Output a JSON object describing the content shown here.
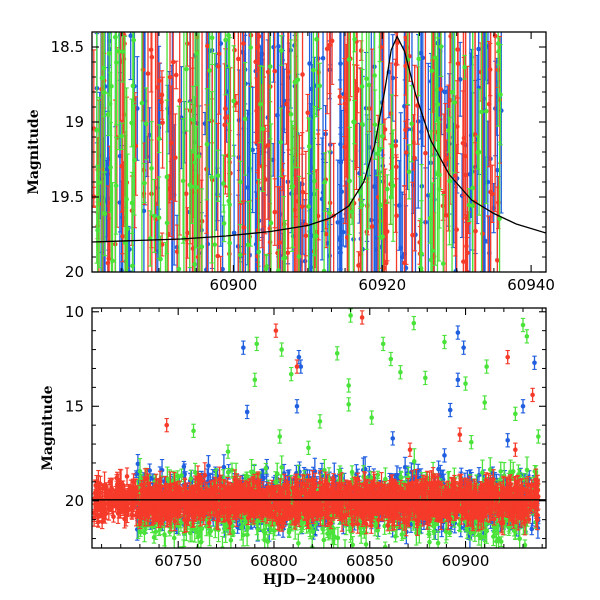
{
  "chart_data": [
    {
      "type": "scatter",
      "panel": "top",
      "title": "",
      "xlabel": "",
      "ylabel": "Magnitude",
      "xlim": [
        60881,
        60942
      ],
      "ylim": [
        20,
        18.4
      ],
      "y_inverted": true,
      "xticks": [
        60900,
        60920,
        60940
      ],
      "yticks": [
        18.5,
        19,
        19.5,
        20
      ],
      "ytick_labels": [
        "18.5",
        "19",
        "19.5",
        "20"
      ],
      "error_bars": true,
      "colors": {
        "blue": "#1f5fe0",
        "red": "#f53a2a",
        "green": "#4ae33a",
        "model": "#000000"
      },
      "model_curve": {
        "color": "#000000",
        "x": [
          60881,
          60887,
          60893,
          60899,
          60905,
          60910,
          60913,
          60915.5,
          60917.5,
          60919,
          60920.3,
          60921.2,
          60922.0,
          60923.0,
          60924.5,
          60926.5,
          60929,
          60932,
          60935,
          60938,
          60942
        ],
        "y": [
          19.8,
          19.79,
          19.78,
          19.76,
          19.73,
          19.69,
          19.64,
          19.56,
          19.4,
          19.15,
          18.8,
          18.52,
          18.43,
          18.53,
          18.82,
          19.12,
          19.35,
          19.52,
          19.61,
          19.68,
          19.74
        ]
      },
      "series": [
        {
          "color": "blue",
          "x_range": [
            60881,
            60936
          ],
          "npoints": 240,
          "seed": 11,
          "ymin": 18.42,
          "ymax": 20.02
        },
        {
          "color": "red",
          "x_range": [
            60881,
            60936
          ],
          "npoints": 240,
          "seed": 23,
          "ymin": 18.42,
          "ymax": 20.02
        },
        {
          "color": "green",
          "x_range": [
            60881,
            60937
          ],
          "npoints": 160,
          "seed": 37,
          "ymin": 18.42,
          "ymax": 20.02
        }
      ]
    },
    {
      "type": "scatter",
      "panel": "bottom",
      "title": "",
      "xlabel": "HJD−2400000",
      "ylabel": "Magnitude",
      "xlim": [
        60705,
        60942
      ],
      "ylim": [
        22.5,
        9.8
      ],
      "y_inverted": true,
      "xticks": [
        60750,
        60800,
        60850,
        60900
      ],
      "yticks": [
        10,
        15,
        20
      ],
      "ytick_labels": [
        "10",
        "15",
        "20"
      ],
      "error_bars": true,
      "colors": {
        "blue": "#1f5fe0",
        "red": "#f53a2a",
        "green": "#4ae33a",
        "model": "#000000"
      },
      "model_baseline": {
        "color": "#000000",
        "x": [
          60705,
          60942
        ],
        "y": [
          19.95,
          19.95
        ]
      },
      "dense_band": [
        {
          "color": "blue",
          "x_range": [
            60728,
            60938
          ],
          "npoints": 900,
          "center": 20.0,
          "spread": 2.2,
          "seed": 101
        },
        {
          "color": "green",
          "x_range": [
            60728,
            60938
          ],
          "npoints": 900,
          "center": 20.3,
          "spread": 2.6,
          "seed": 103
        },
        {
          "color": "red",
          "x_range": [
            60706,
            60938
          ],
          "npoints": 1600,
          "center": 20.0,
          "spread": 1.5,
          "seed": 107
        }
      ],
      "outliers": [
        {
          "color": "green",
          "x": 60840,
          "y": 10.2
        },
        {
          "color": "red",
          "x": 60846,
          "y": 10.3
        },
        {
          "color": "red",
          "x": 60801,
          "y": 11.0
        },
        {
          "color": "green",
          "x": 60873,
          "y": 10.6
        },
        {
          "color": "green",
          "x": 60930,
          "y": 10.7
        },
        {
          "color": "green",
          "x": 60932,
          "y": 11.3
        },
        {
          "color": "blue",
          "x": 60896,
          "y": 11.1
        },
        {
          "color": "blue",
          "x": 60899,
          "y": 11.9
        },
        {
          "color": "green",
          "x": 60791,
          "y": 11.7
        },
        {
          "color": "green",
          "x": 60804,
          "y": 12.0
        },
        {
          "color": "blue",
          "x": 60784,
          "y": 11.9
        },
        {
          "color": "green",
          "x": 60833,
          "y": 12.2
        },
        {
          "color": "blue",
          "x": 60813,
          "y": 12.4
        },
        {
          "color": "blue",
          "x": 60814,
          "y": 12.9
        },
        {
          "color": "red",
          "x": 60812,
          "y": 12.9
        },
        {
          "color": "green",
          "x": 60809,
          "y": 13.3
        },
        {
          "color": "green",
          "x": 60857,
          "y": 11.7
        },
        {
          "color": "green",
          "x": 60861,
          "y": 12.5
        },
        {
          "color": "green",
          "x": 60866,
          "y": 13.2
        },
        {
          "color": "green",
          "x": 60879,
          "y": 13.5
        },
        {
          "color": "green",
          "x": 60889,
          "y": 11.6
        },
        {
          "color": "green",
          "x": 60911,
          "y": 12.9
        },
        {
          "color": "red",
          "x": 60922,
          "y": 12.4
        },
        {
          "color": "blue",
          "x": 60936,
          "y": 12.7
        },
        {
          "color": "green",
          "x": 60790,
          "y": 13.6
        },
        {
          "color": "green",
          "x": 60839,
          "y": 13.9
        },
        {
          "color": "blue",
          "x": 60896,
          "y": 13.6
        },
        {
          "color": "green",
          "x": 60900,
          "y": 13.8
        },
        {
          "color": "red",
          "x": 60935,
          "y": 14.4
        },
        {
          "color": "blue",
          "x": 60786,
          "y": 15.3
        },
        {
          "color": "blue",
          "x": 60812,
          "y": 15.0
        },
        {
          "color": "green",
          "x": 60824,
          "y": 15.8
        },
        {
          "color": "green",
          "x": 60839,
          "y": 14.9
        },
        {
          "color": "green",
          "x": 60851,
          "y": 15.6
        },
        {
          "color": "blue",
          "x": 60892,
          "y": 15.2
        },
        {
          "color": "green",
          "x": 60910,
          "y": 14.8
        },
        {
          "color": "green",
          "x": 60926,
          "y": 15.4
        },
        {
          "color": "blue",
          "x": 60930,
          "y": 15.0
        },
        {
          "color": "red",
          "x": 60744,
          "y": 16.0
        },
        {
          "color": "green",
          "x": 60758,
          "y": 16.3
        },
        {
          "color": "green",
          "x": 60803,
          "y": 16.6
        },
        {
          "color": "blue",
          "x": 60862,
          "y": 16.7
        },
        {
          "color": "red",
          "x": 60897,
          "y": 16.5
        },
        {
          "color": "green",
          "x": 60903,
          "y": 16.9
        },
        {
          "color": "blue",
          "x": 60922,
          "y": 16.8
        },
        {
          "color": "red",
          "x": 60926,
          "y": 17.3
        },
        {
          "color": "green",
          "x": 60938,
          "y": 16.6
        },
        {
          "color": "green",
          "x": 60776,
          "y": 17.4
        },
        {
          "color": "green",
          "x": 60818,
          "y": 17.2
        },
        {
          "color": "red",
          "x": 60871,
          "y": 17.3
        },
        {
          "color": "blue",
          "x": 60889,
          "y": 17.6
        }
      ]
    }
  ]
}
